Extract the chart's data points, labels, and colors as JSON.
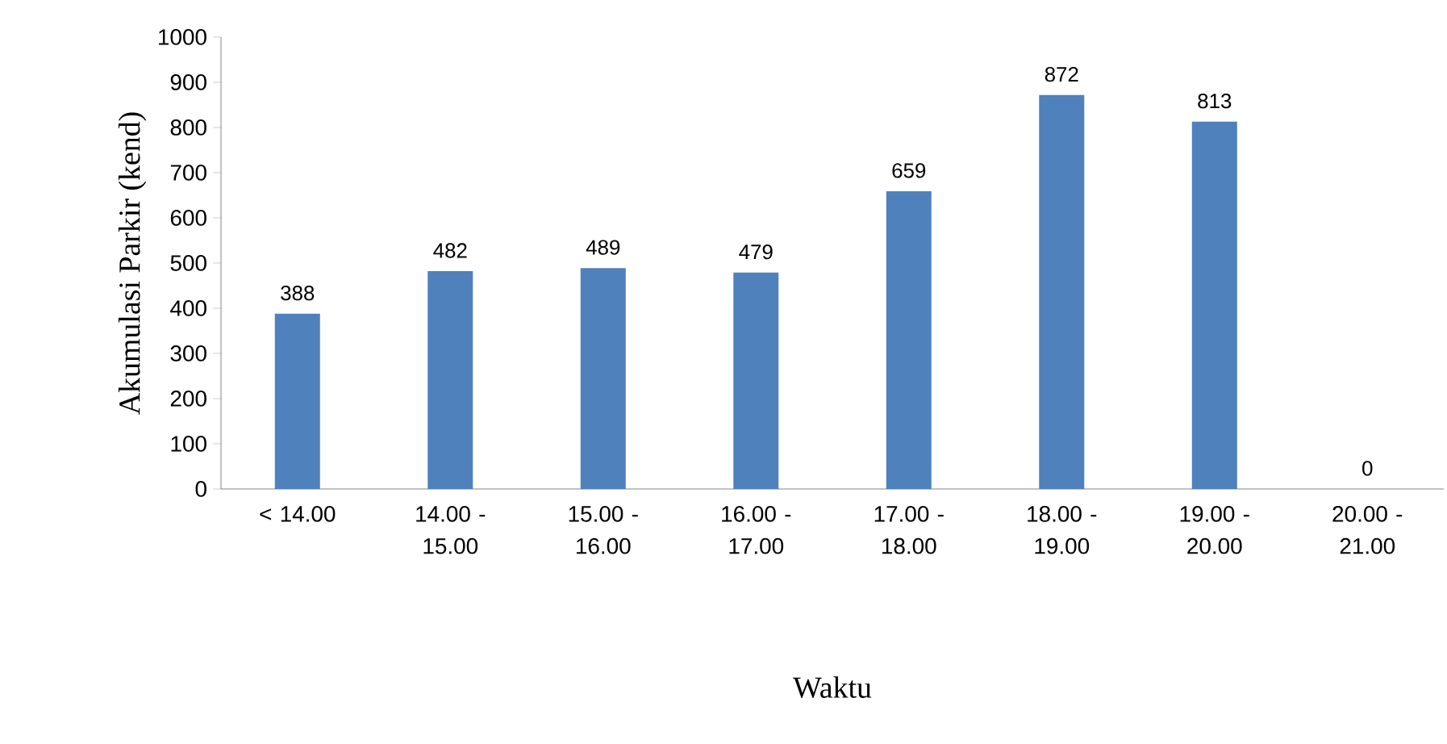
{
  "chart_data": {
    "type": "bar",
    "xlabel": "Waktu",
    "ylabel": "Akumulasi Parkir (kend)",
    "categories": [
      "< 14.00",
      "14.00 - 15.00",
      "15.00 - 16.00",
      "16.00 - 17.00",
      "17.00 - 18.00",
      "18.00 - 19.00",
      "19.00 - 20.00",
      "20.00 - 21.00"
    ],
    "values": [
      388,
      482,
      489,
      479,
      659,
      872,
      813,
      0
    ],
    "color": "#4f81bd",
    "ylim": [
      0,
      1000
    ],
    "yticks": [
      0,
      100,
      200,
      300,
      400,
      500,
      600,
      700,
      800,
      900,
      1000
    ],
    "data_labels": true,
    "grid": false
  }
}
